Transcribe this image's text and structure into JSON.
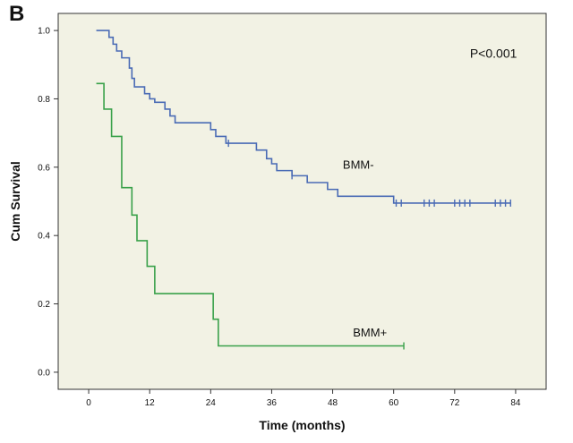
{
  "panel_label": "B",
  "chart_data": {
    "type": "line",
    "subtype": "kaplan-meier",
    "xlabel": "Time (months)",
    "ylabel": "Cum Survival",
    "xlim": [
      -6,
      90
    ],
    "ylim": [
      -0.05,
      1.05
    ],
    "xticks": [
      0,
      12,
      24,
      36,
      48,
      60,
      72,
      84
    ],
    "yticks": [
      0.0,
      0.2,
      0.4,
      0.6,
      0.8,
      1.0
    ],
    "ytick_labels": [
      "0.0",
      "0.2",
      "0.4",
      "0.6",
      "0.8",
      "1.0"
    ],
    "grid": false,
    "background": "#f2f2e4",
    "annotation": "P<0.001",
    "series": [
      {
        "name": "BMM-",
        "color": "#4a6bb5",
        "steps": [
          [
            1.5,
            1.0
          ],
          [
            4,
            0.98
          ],
          [
            4.8,
            0.96
          ],
          [
            5.5,
            0.94
          ],
          [
            6.5,
            0.92
          ],
          [
            8,
            0.89
          ],
          [
            8.5,
            0.86
          ],
          [
            9,
            0.835
          ],
          [
            11,
            0.815
          ],
          [
            12,
            0.8
          ],
          [
            13,
            0.79
          ],
          [
            15,
            0.77
          ],
          [
            16,
            0.75
          ],
          [
            17,
            0.73
          ],
          [
            24,
            0.71
          ],
          [
            25,
            0.69
          ],
          [
            27,
            0.67
          ],
          [
            33,
            0.65
          ],
          [
            35,
            0.625
          ],
          [
            36,
            0.61
          ],
          [
            37,
            0.59
          ],
          [
            40,
            0.575
          ],
          [
            43,
            0.555
          ],
          [
            47,
            0.535
          ],
          [
            49,
            0.515
          ],
          [
            60,
            0.495
          ],
          [
            83,
            0.495
          ]
        ],
        "censored": [
          [
            27.5,
            0.67
          ],
          [
            40,
            0.575
          ],
          [
            60.5,
            0.495
          ],
          [
            61.5,
            0.495
          ],
          [
            66,
            0.495
          ],
          [
            67,
            0.495
          ],
          [
            68,
            0.495
          ],
          [
            72,
            0.495
          ],
          [
            73,
            0.495
          ],
          [
            74,
            0.495
          ],
          [
            75,
            0.495
          ],
          [
            80,
            0.495
          ],
          [
            81,
            0.495
          ],
          [
            82,
            0.495
          ],
          [
            83,
            0.495
          ]
        ]
      },
      {
        "name": "BMM+",
        "color": "#3aa14a",
        "steps": [
          [
            1.5,
            0.845
          ],
          [
            3,
            0.77
          ],
          [
            4.5,
            0.69
          ],
          [
            6.5,
            0.54
          ],
          [
            8.5,
            0.46
          ],
          [
            9.5,
            0.385
          ],
          [
            11.5,
            0.31
          ],
          [
            13,
            0.23
          ],
          [
            24.5,
            0.155
          ],
          [
            25.5,
            0.077
          ],
          [
            62,
            0.077
          ]
        ],
        "censored": [
          [
            62,
            0.077
          ]
        ]
      }
    ],
    "series_labels": [
      {
        "text": "BMM-",
        "x": 50,
        "y": 0.595
      },
      {
        "text": "BMM+",
        "x": 52,
        "y": 0.105
      }
    ],
    "annotation_pos": {
      "x": 75,
      "y": 0.92
    }
  }
}
